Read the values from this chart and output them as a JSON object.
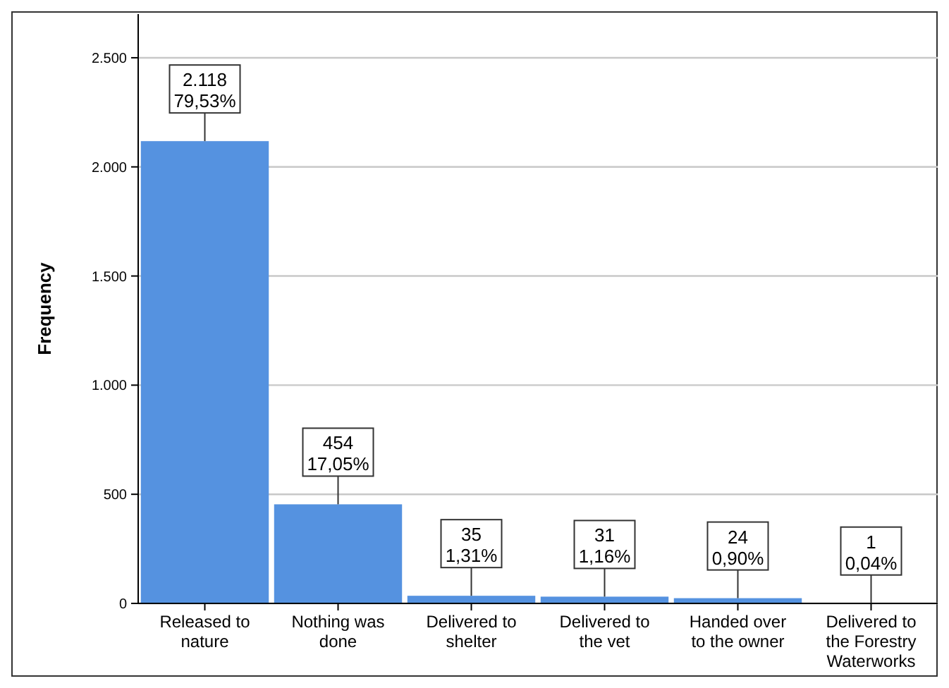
{
  "chart_data": {
    "type": "bar",
    "ylabel": "Frequency",
    "categories": [
      "Released to nature",
      "Nothing was done",
      "Delivered to shelter",
      "Delivered to the vet",
      "Handed over to the owner",
      "Delivered to the Forestry Waterworks"
    ],
    "values": [
      2118,
      454,
      35,
      31,
      24,
      1
    ],
    "value_labels": [
      "2.118\n79,53%",
      "454\n17,05%",
      "35\n1,31%",
      "31\n1,16%",
      "24\n0,90%",
      "1\n0,04%"
    ],
    "color": "#5592e0",
    "ylim": [
      0,
      2700
    ],
    "yticks": [
      {
        "value": 0,
        "label": "0"
      },
      {
        "value": 500,
        "label": "500"
      },
      {
        "value": 1000,
        "label": "1.000"
      },
      {
        "value": 1500,
        "label": "1.500"
      },
      {
        "value": 2000,
        "label": "2.000"
      },
      {
        "value": 2500,
        "label": "2.500"
      }
    ],
    "grid": "y"
  }
}
